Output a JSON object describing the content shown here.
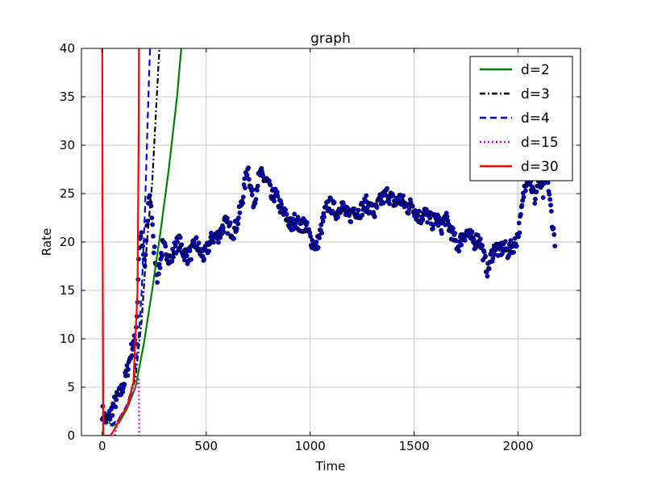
{
  "chart_data": {
    "type": "scatter",
    "title": "graph",
    "xlabel": "Time",
    "ylabel": "Rate",
    "xlim": [
      -100,
      2300
    ],
    "ylim": [
      0,
      40
    ],
    "xticks": [
      0,
      500,
      1000,
      1500,
      2000
    ],
    "yticks": [
      0,
      5,
      10,
      15,
      20,
      25,
      30,
      35,
      40
    ],
    "xtick_labels": [
      "0",
      "500",
      "1000",
      "1500",
      "2000"
    ],
    "ytick_labels": [
      "0",
      "5",
      "10",
      "15",
      "20",
      "25",
      "30",
      "35",
      "40"
    ],
    "grid": true,
    "legend_position": "top-right",
    "scatter_series": {
      "fill": "#0000cc",
      "edge": "#000000",
      "anchor_points": [
        [
          0,
          2.5
        ],
        [
          20,
          1.5
        ],
        [
          40,
          2.2
        ],
        [
          55,
          3.2
        ],
        [
          70,
          3.8
        ],
        [
          90,
          4.5
        ],
        [
          110,
          5.8
        ],
        [
          125,
          7.2
        ],
        [
          140,
          8.8
        ],
        [
          160,
          10.0
        ],
        [
          170,
          14.0
        ],
        [
          175,
          18.5
        ],
        [
          185,
          21.0
        ],
        [
          195,
          19.0
        ],
        [
          205,
          17.5
        ],
        [
          215,
          21.0
        ],
        [
          225,
          25.0
        ],
        [
          235,
          24.0
        ],
        [
          245,
          20.0
        ],
        [
          255,
          18.5
        ],
        [
          265,
          16.5
        ],
        [
          275,
          17.5
        ],
        [
          290,
          19.5
        ],
        [
          310,
          19.0
        ],
        [
          330,
          18.0
        ],
        [
          350,
          19.5
        ],
        [
          370,
          20.0
        ],
        [
          390,
          19.0
        ],
        [
          410,
          18.5
        ],
        [
          430,
          19.0
        ],
        [
          450,
          20.0
        ],
        [
          470,
          19.0
        ],
        [
          490,
          18.5
        ],
        [
          510,
          19.5
        ],
        [
          530,
          20.5
        ],
        [
          550,
          20.5
        ],
        [
          570,
          21.0
        ],
        [
          590,
          22.0
        ],
        [
          610,
          21.5
        ],
        [
          630,
          21.0
        ],
        [
          650,
          22.0
        ],
        [
          670,
          24.0
        ],
        [
          690,
          26.5
        ],
        [
          700,
          28.0
        ],
        [
          715,
          25.5
        ],
        [
          730,
          24.0
        ],
        [
          745,
          26.0
        ],
        [
          760,
          27.0
        ],
        [
          780,
          26.5
        ],
        [
          800,
          26.0
        ],
        [
          815,
          24.5
        ],
        [
          830,
          25.0
        ],
        [
          850,
          24.0
        ],
        [
          870,
          23.0
        ],
        [
          890,
          22.5
        ],
        [
          910,
          21.5
        ],
        [
          930,
          22.5
        ],
        [
          950,
          21.5
        ],
        [
          970,
          22.0
        ],
        [
          990,
          21.0
        ],
        [
          1010,
          20.0
        ],
        [
          1030,
          19.5
        ],
        [
          1050,
          21.0
        ],
        [
          1070,
          23.0
        ],
        [
          1090,
          24.0
        ],
        [
          1110,
          23.5
        ],
        [
          1130,
          23.0
        ],
        [
          1150,
          24.0
        ],
        [
          1170,
          23.0
        ],
        [
          1190,
          22.5
        ],
        [
          1210,
          23.5
        ],
        [
          1230,
          23.0
        ],
        [
          1250,
          23.5
        ],
        [
          1270,
          24.0
        ],
        [
          1290,
          23.5
        ],
        [
          1310,
          23.0
        ],
        [
          1330,
          24.0
        ],
        [
          1350,
          24.5
        ],
        [
          1370,
          25.0
        ],
        [
          1390,
          24.5
        ],
        [
          1410,
          24.0
        ],
        [
          1430,
          24.5
        ],
        [
          1450,
          24.0
        ],
        [
          1470,
          23.5
        ],
        [
          1490,
          24.0
        ],
        [
          1510,
          23.0
        ],
        [
          1530,
          22.5
        ],
        [
          1550,
          23.0
        ],
        [
          1570,
          22.5
        ],
        [
          1590,
          22.0
        ],
        [
          1610,
          22.5
        ],
        [
          1630,
          21.5
        ],
        [
          1650,
          22.5
        ],
        [
          1670,
          21.5
        ],
        [
          1690,
          20.5
        ],
        [
          1710,
          19.5
        ],
        [
          1730,
          20.5
        ],
        [
          1750,
          21.0
        ],
        [
          1770,
          20.5
        ],
        [
          1790,
          20.0
        ],
        [
          1810,
          20.5
        ],
        [
          1825,
          19.5
        ],
        [
          1840,
          18.0
        ],
        [
          1855,
          17.0
        ],
        [
          1870,
          18.5
        ],
        [
          1890,
          19.5
        ],
        [
          1910,
          19.0
        ],
        [
          1930,
          19.5
        ],
        [
          1950,
          19.0
        ],
        [
          1970,
          19.5
        ],
        [
          1990,
          20.0
        ],
        [
          2010,
          22.0
        ],
        [
          2030,
          25.5
        ],
        [
          2045,
          27.0
        ],
        [
          2060,
          26.0
        ],
        [
          2080,
          24.5
        ],
        [
          2100,
          26.5
        ],
        [
          2120,
          25.0
        ],
        [
          2140,
          27.0
        ],
        [
          2150,
          24.5
        ],
        [
          2160,
          23.0
        ],
        [
          2170,
          21.0
        ],
        [
          2180,
          20.0
        ]
      ]
    },
    "series": [
      {
        "name": "d=2",
        "color": "#008000",
        "dash": "solid",
        "points": [
          [
            30,
            1.4
          ],
          [
            50,
            1.0
          ],
          [
            80,
            1.3
          ],
          [
            120,
            2.8
          ],
          [
            160,
            5.0
          ],
          [
            200,
            9.5
          ],
          [
            240,
            15.0
          ],
          [
            280,
            21.0
          ],
          [
            320,
            27.5
          ],
          [
            360,
            35.0
          ],
          [
            380,
            40.0
          ]
        ]
      },
      {
        "name": "d=3",
        "color": "#000000",
        "dash": "dashdot",
        "points": [
          [
            40,
            1.0
          ],
          [
            80,
            1.6
          ],
          [
            120,
            3.0
          ],
          [
            160,
            6.0
          ],
          [
            190,
            12.0
          ],
          [
            215,
            20.0
          ],
          [
            240,
            26.0
          ],
          [
            260,
            34.0
          ],
          [
            275,
            40.0
          ]
        ]
      },
      {
        "name": "d=4",
        "color": "#0000ff",
        "dash": "dashed",
        "points": [
          [
            40,
            1.1
          ],
          [
            80,
            1.7
          ],
          [
            120,
            3.2
          ],
          [
            150,
            5.5
          ],
          [
            175,
            10.0
          ],
          [
            190,
            15.0
          ],
          [
            205,
            23.0
          ],
          [
            215,
            30.0
          ],
          [
            225,
            37.0
          ],
          [
            230,
            40.0
          ]
        ]
      },
      {
        "name": "d=15",
        "color": "#cc00cc",
        "dash": "dotted",
        "points": [
          [
            60,
            0.0
          ],
          [
            80,
            1.8
          ],
          [
            120,
            3.0
          ],
          [
            150,
            4.5
          ],
          [
            170,
            5.5
          ],
          [
            176,
            6.0
          ],
          [
            178,
            0.0
          ]
        ]
      },
      {
        "name": "d=30",
        "color": "#ff0000",
        "dash": "solid",
        "points": [
          [
            0,
            40.0
          ],
          [
            2,
            20.0
          ],
          [
            5,
            0.0
          ],
          [
            15,
            0.0
          ],
          [
            40,
            0.0
          ],
          [
            55,
            0.5
          ],
          [
            80,
            1.5
          ],
          [
            120,
            3.0
          ],
          [
            150,
            5.5
          ],
          [
            170,
            15.0
          ],
          [
            175,
            30.0
          ],
          [
            177,
            40.0
          ]
        ]
      }
    ]
  }
}
